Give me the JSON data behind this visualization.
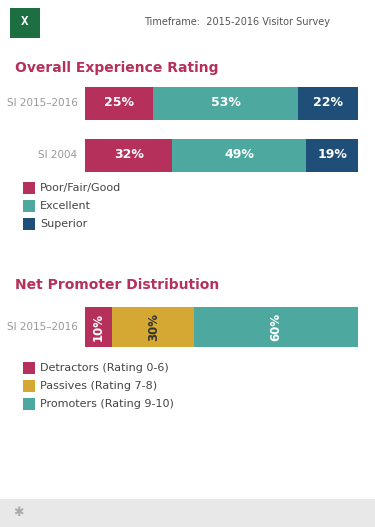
{
  "timeframe_text": "Timeframe:  2015-2016 Visitor Survey",
  "section1_title": "Overall Experience Rating",
  "section2_title": "Net Promoter Distribution",
  "overall_bars": [
    {
      "label": "SI 2015–2016",
      "values": [
        25,
        53,
        22
      ]
    },
    {
      "label": "SI 2004",
      "values": [
        32,
        49,
        19
      ]
    }
  ],
  "overall_colors": [
    "#b5305a",
    "#4da8a0",
    "#1f4e79"
  ],
  "overall_labels": [
    "Poor/Fair/Good",
    "Excellent",
    "Superior"
  ],
  "overall_pct_labels": [
    [
      "25%",
      "53%",
      "22%"
    ],
    [
      "32%",
      "49%",
      "19%"
    ]
  ],
  "net_bars": [
    {
      "label": "SI 2015–2016",
      "values": [
        10,
        30,
        60
      ]
    }
  ],
  "net_colors": [
    "#b5305a",
    "#d4a832",
    "#4da8a0"
  ],
  "net_labels": [
    "Detractors (Rating 0-6)",
    "Passives (Rating 7-8)",
    "Promoters (Rating 9-10)"
  ],
  "net_pct_labels": [
    [
      "10%",
      "30%",
      "60%"
    ]
  ],
  "background_color": "#ffffff",
  "title_color": "#b5305a",
  "timeframe_color": "#555555",
  "bar_text_color_light": "#ffffff",
  "bar_text_color_dark": "#333333",
  "label_color": "#999999",
  "legend_text_color": "#444444",
  "fig_width": 3.75,
  "fig_height": 5.27,
  "excel_color": "#1d6f42",
  "bottom_bar_color": "#e8e8e8"
}
